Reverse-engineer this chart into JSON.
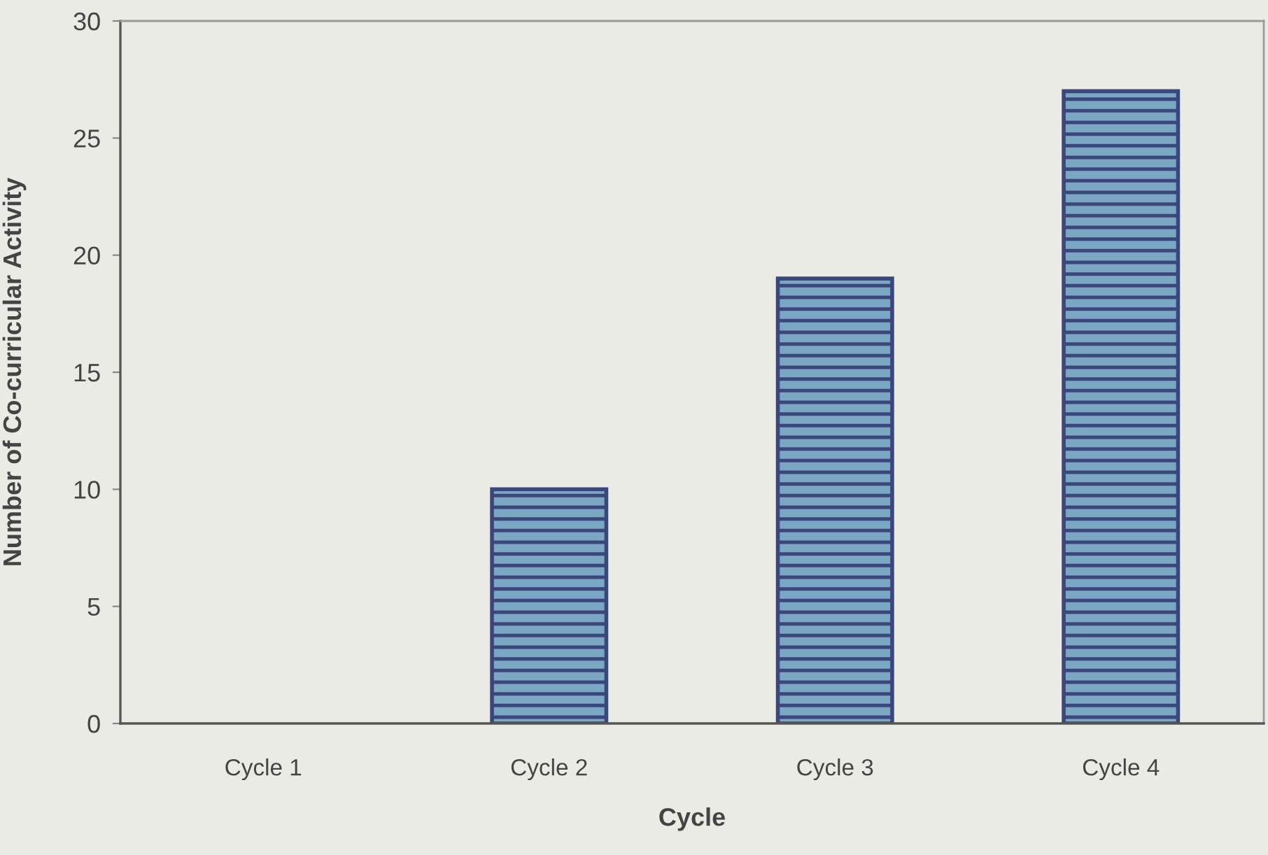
{
  "chart_data": {
    "type": "bar",
    "xlabel": "Cycle",
    "ylabel": "Number of Co-curricular Activity",
    "categories": [
      "Cycle 1",
      "Cycle 2",
      "Cycle 3",
      "Cycle 4"
    ],
    "values": [
      0,
      10,
      19,
      27
    ],
    "color": "#3b467a",
    "ylim": [
      0,
      30
    ],
    "yticks": [
      0,
      5,
      10,
      15,
      20,
      25,
      30
    ],
    "grid": false,
    "legend": false
  }
}
